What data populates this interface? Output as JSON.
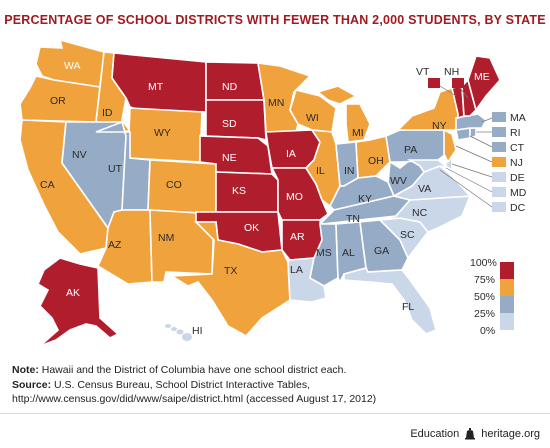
{
  "title": "PERCENTAGE OF SCHOOL DISTRICTS WITH FEWER THAN 2,000 STUDENTS, BY STATE",
  "colors": {
    "dark_red": "#b01e2e",
    "orange": "#f0a33c",
    "blue_gray": "#96abc6",
    "light_blue": "#c9d7e8"
  },
  "legend": {
    "ticks": [
      "100%",
      "75%",
      "50%",
      "25%",
      "0%"
    ]
  },
  "states": {
    "WA": "WA",
    "OR": "OR",
    "CA": "CA",
    "ID": "ID",
    "NV": "NV",
    "MT": "MT",
    "WY": "WY",
    "UT": "UT",
    "AZ": "AZ",
    "CO": "CO",
    "NM": "NM",
    "ND": "ND",
    "SD": "SD",
    "NE": "NE",
    "KS": "KS",
    "OK": "OK",
    "TX": "TX",
    "MN": "MN",
    "IA": "IA",
    "MO": "MO",
    "AR": "AR",
    "LA": "LA",
    "WI": "WI",
    "IL": "IL",
    "MI": "MI",
    "IN": "IN",
    "OH": "OH",
    "KY": "KY",
    "TN": "TN",
    "MS": "MS",
    "AL": "AL",
    "GA": "GA",
    "FL": "FL",
    "SC": "SC",
    "NC": "NC",
    "VA": "VA",
    "WV": "WV",
    "PA": "PA",
    "NY": "NY",
    "ME": "ME",
    "VT": "VT",
    "NH": "NH",
    "AK": "AK",
    "HI": "HI"
  },
  "callouts": {
    "MA": "MA",
    "RI": "RI",
    "CT": "CT",
    "NJ": "NJ",
    "DE": "DE",
    "MD": "MD",
    "DC": "DC"
  },
  "note_label": "Note:",
  "note_text": " Hawaii and the District of Columbia have one school district each.",
  "source_label": "Source:",
  "source_text": " U.S. Census Bureau, School District Interactive Tables, http://www.census.gov/did/www/saipe/district.html (accessed August 17, 2012)",
  "footer": {
    "left": "Education",
    "right": "heritage.org"
  }
}
